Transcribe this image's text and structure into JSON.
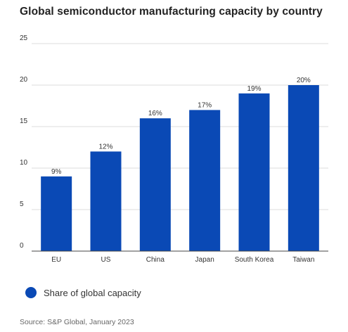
{
  "colors": {
    "bar": "#0a49b5",
    "grid": "#dddddd",
    "axis": "#444444",
    "text": "#333333"
  },
  "legend": {
    "icon": "circle-icon",
    "label": "Share of global capacity"
  },
  "source": "Source: S&P Global, January 2023",
  "chart_data": {
    "type": "bar",
    "title": "Global semiconductor manufacturing capacity by country",
    "xlabel": "",
    "ylabel": "",
    "ylim": [
      0,
      25
    ],
    "yticks": [
      0,
      5,
      10,
      15,
      20,
      25
    ],
    "grid": true,
    "legend_position": "bottom-left",
    "categories": [
      "EU",
      "US",
      "China",
      "Japan",
      "South Korea",
      "Taiwan"
    ],
    "series": [
      {
        "name": "Share of global capacity",
        "values": [
          9,
          12,
          16,
          17,
          19,
          20
        ],
        "labels": [
          "9%",
          "12%",
          "16%",
          "17%",
          "19%",
          "20%"
        ]
      }
    ]
  }
}
